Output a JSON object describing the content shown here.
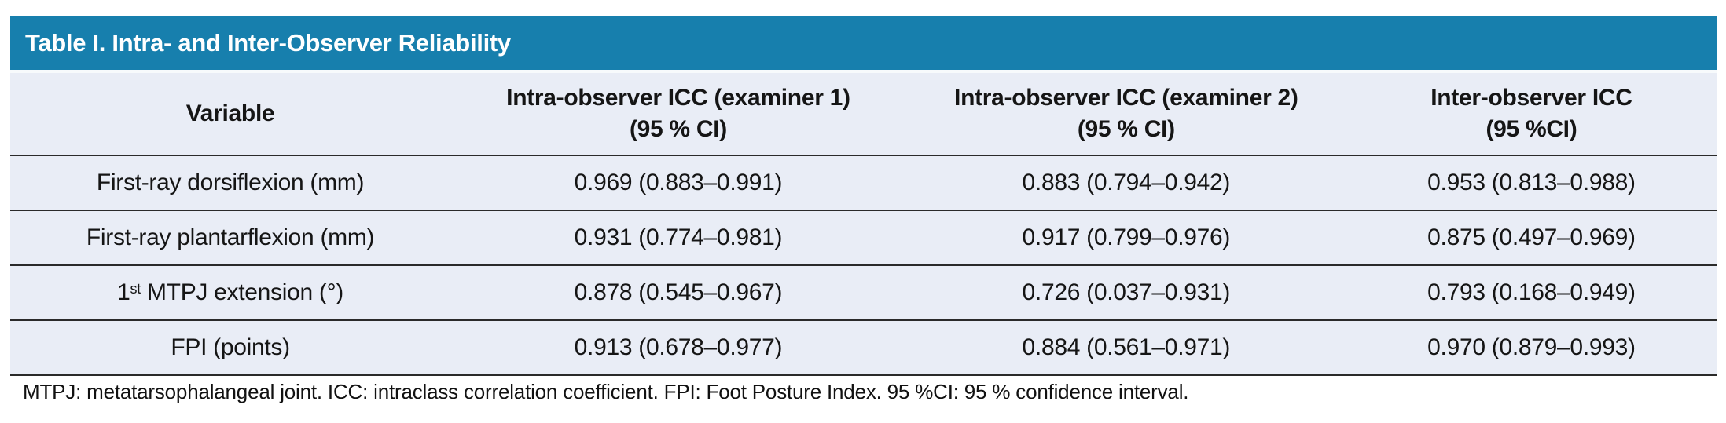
{
  "title": "Table I. Intra- and Inter-Observer Reliability",
  "colors": {
    "title_bar_bg": "#177fad",
    "title_text": "#ffffff",
    "body_bg": "#e9edf6",
    "rule": "#2a2a2a"
  },
  "table": {
    "columns": [
      {
        "line1": "Variable",
        "line2": ""
      },
      {
        "line1": "Intra-observer ICC (examiner 1)",
        "line2": "(95 % CI)"
      },
      {
        "line1": "Intra-observer ICC (examiner 2)",
        "line2": "(95 % CI)"
      },
      {
        "line1": "Inter-observer ICC",
        "line2": "(95 %CI)"
      }
    ],
    "rows": [
      {
        "variable": {
          "pre": "First-ray dorsiflexion (mm)",
          "sup": "",
          "post": ""
        },
        "icc_examiner1": "0.969 (0.883–0.991)",
        "icc_examiner2": "0.883 (0.794–0.942)",
        "inter_icc": "0.953 (0.813–0.988)"
      },
      {
        "variable": {
          "pre": "First-ray plantarflexion (mm)",
          "sup": "",
          "post": ""
        },
        "icc_examiner1": "0.931 (0.774–0.981)",
        "icc_examiner2": "0.917 (0.799–0.976)",
        "inter_icc": "0.875 (0.497–0.969)"
      },
      {
        "variable": {
          "pre": "1",
          "sup": "st",
          "post": " MTPJ extension (°)"
        },
        "icc_examiner1": "0.878 (0.545–0.967)",
        "icc_examiner2": "0.726 (0.037–0.931)",
        "inter_icc": "0.793 (0.168–0.949)"
      },
      {
        "variable": {
          "pre": "FPI (points)",
          "sup": "",
          "post": ""
        },
        "icc_examiner1": "0.913 (0.678–0.977)",
        "icc_examiner2": "0.884 (0.561–0.971)",
        "inter_icc": "0.970 (0.879–0.993)"
      }
    ]
  },
  "footnote": "MTPJ: metatarsophalangeal joint. ICC: intraclass correlation coefficient. FPI: Foot Posture Index. 95 %CI: 95 % confidence interval."
}
